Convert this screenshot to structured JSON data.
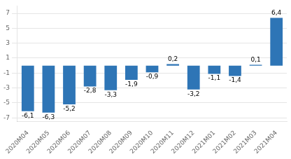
{
  "chart_data": {
    "type": "bar",
    "categories": [
      "2020M04",
      "2020M05",
      "2020M06",
      "2020M07",
      "2020M08",
      "2020M09",
      "2020M10",
      "2020M11",
      "2020M12",
      "2021M01",
      "2021M02",
      "2021M03",
      "2021M04"
    ],
    "values": [
      -6.1,
      -6.3,
      -5.2,
      -2.8,
      -3.3,
      -1.9,
      -0.9,
      0.2,
      -3.2,
      -1.1,
      -1.4,
      0.1,
      6.4
    ],
    "value_labels": [
      "-6,1",
      "-6,3",
      "-5,2",
      "-2,8",
      "-3,3",
      "-1,9",
      "-0,9",
      "0,2",
      "-3,2",
      "-1,1",
      "-1,4",
      "0,1",
      "6,4"
    ],
    "color": "#2E75B6",
    "ylim": [
      -7.5,
      8.0
    ],
    "yticks": [
      -7,
      -5,
      -3,
      -1,
      1,
      3,
      5,
      7
    ],
    "grid": true,
    "data_labels": true
  }
}
